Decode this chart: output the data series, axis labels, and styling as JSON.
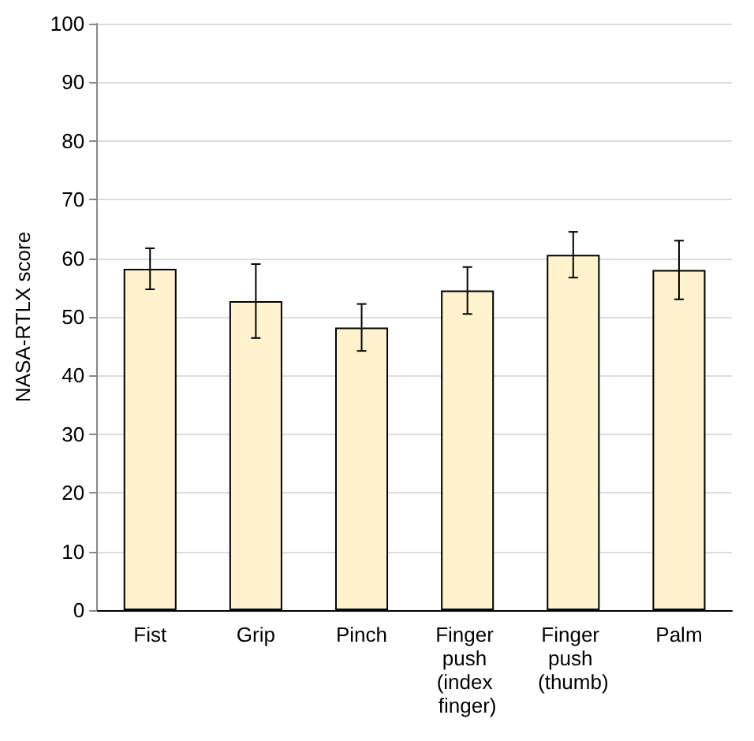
{
  "chart_data": {
    "type": "bar",
    "ylabel": "NASA-RTLX score",
    "categories": [
      "Fist",
      "Grip",
      "Pinch",
      "Finger push (index finger)",
      "Finger push (thumb)",
      "Palm"
    ],
    "values": [
      58.2,
      52.7,
      48.2,
      54.5,
      60.6,
      58.0
    ],
    "errors": [
      3.5,
      6.3,
      4.0,
      4.0,
      3.9,
      5.0
    ],
    "color": "#fff2cc",
    "ylim": [
      0,
      100
    ],
    "yticks": [
      0,
      10,
      20,
      30,
      40,
      50,
      60,
      70,
      80,
      90,
      100
    ],
    "grid": "y"
  }
}
